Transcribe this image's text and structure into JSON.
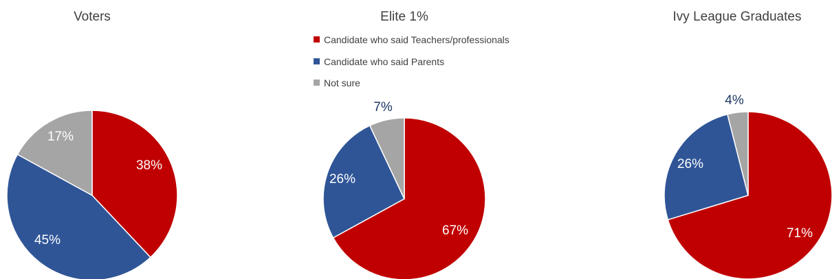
{
  "legend": [
    {
      "label": "Candidate who said Teachers/professionals",
      "color": "#C00000"
    },
    {
      "label": "Candidate who said Parents",
      "color": "#2F5597"
    },
    {
      "label": "Not sure",
      "color": "#A5A5A5"
    }
  ],
  "chart_data": [
    {
      "type": "pie",
      "title": "Voters",
      "slices": [
        {
          "label": "Candidate who said Teachers/professionals",
          "value": 38,
          "display": "38%",
          "color": "#C00000"
        },
        {
          "label": "Candidate who said Parents",
          "value": 45,
          "display": "45%",
          "color": "#2F5597"
        },
        {
          "label": "Not sure",
          "value": 17,
          "display": "17%",
          "color": "#A5A5A5"
        }
      ]
    },
    {
      "type": "pie",
      "title": "Elite 1%",
      "slices": [
        {
          "label": "Candidate who said Teachers/professionals",
          "value": 67,
          "display": "67%",
          "color": "#C00000"
        },
        {
          "label": "Candidate who said Parents",
          "value": 26,
          "display": "26%",
          "color": "#2F5597"
        },
        {
          "label": "Not sure",
          "value": 7,
          "display": "7%",
          "color": "#A5A5A5"
        }
      ]
    },
    {
      "type": "pie",
      "title": "Ivy League Graduates",
      "slices": [
        {
          "label": "Candidate who said Teachers/professionals",
          "value": 71,
          "display": "71%",
          "color": "#C00000"
        },
        {
          "label": "Candidate who said Parents",
          "value": 26,
          "display": "26%",
          "color": "#2F5597"
        },
        {
          "label": "Not sure",
          "value": 4,
          "display": "4%",
          "color": "#A5A5A5"
        }
      ]
    }
  ]
}
